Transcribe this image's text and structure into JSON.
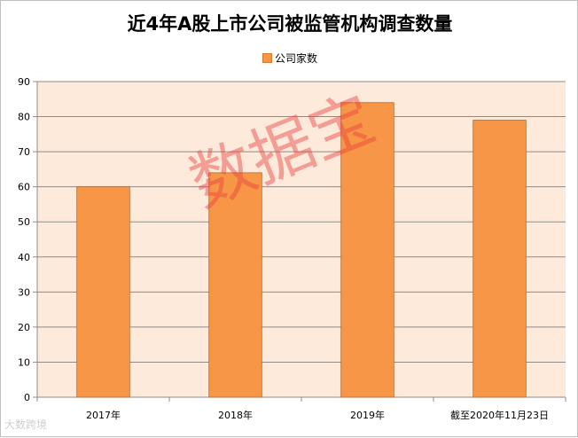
{
  "chart_data": {
    "type": "bar",
    "title": "近4年A股上市公司被监管机构调查数量",
    "categories": [
      "2017年",
      "2018年",
      "2019年",
      "截至2020年11月23日"
    ],
    "series": [
      {
        "name": "公司家数",
        "values": [
          60,
          64,
          84,
          79
        ],
        "color": "#F79646"
      }
    ],
    "ylim": [
      0,
      90
    ],
    "yticks": [
      0,
      10,
      20,
      30,
      40,
      50,
      60,
      70,
      80,
      90
    ],
    "grid": true,
    "legend_position": "top",
    "plot_background": "#FDEADA"
  },
  "watermark": "数据宝",
  "brand_mark": "大数跨境"
}
